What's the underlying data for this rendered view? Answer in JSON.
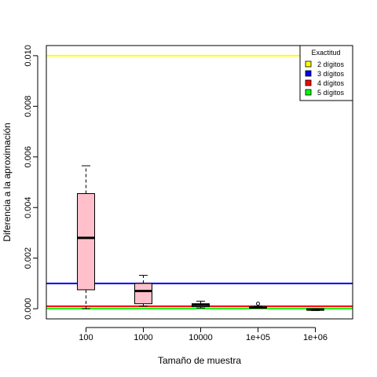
{
  "chart_data": {
    "type": "boxplot",
    "title": "",
    "xlabel": "Tamaño de muestra",
    "ylabel": "Diferencia a la aproximación",
    "ylim": [
      -0.0004,
      0.0104
    ],
    "categories": [
      "100",
      "1000",
      "10000",
      "1e+05",
      "1e+06"
    ],
    "yticks": [
      {
        "value": 0.0,
        "label": "0.000"
      },
      {
        "value": 0.002,
        "label": "0.002"
      },
      {
        "value": 0.004,
        "label": "0.004"
      },
      {
        "value": 0.006,
        "label": "0.006"
      },
      {
        "value": 0.008,
        "label": "0.008"
      },
      {
        "value": 0.01,
        "label": "0.010"
      }
    ],
    "box_color": "#ffc0cb",
    "boxes": [
      {
        "category": "100",
        "whisker_low": 0.0,
        "q1": 0.00075,
        "median": 0.0028,
        "q3": 0.00455,
        "whisker_high": 0.00565,
        "outliers": []
      },
      {
        "category": "1000",
        "whisker_low": 0.0001,
        "q1": 0.0002,
        "median": 0.0007,
        "q3": 0.001,
        "whisker_high": 0.00132,
        "outliers": []
      },
      {
        "category": "10000",
        "whisker_low": 3e-05,
        "q1": 8e-05,
        "median": 0.00015,
        "q3": 0.0002,
        "whisker_high": 0.0003,
        "outliers": []
      },
      {
        "category": "1e+05",
        "whisker_low": 2e-05,
        "q1": 3e-05,
        "median": 5e-05,
        "q3": 8e-05,
        "whisker_high": 0.0001,
        "outliers": [
          0.0002
        ]
      },
      {
        "category": "1e+06",
        "whisker_low": -7e-05,
        "q1": -5e-05,
        "median": -3e-05,
        "q3": -1e-05,
        "whisker_high": 0.0,
        "outliers": []
      }
    ],
    "reference_lines": [
      {
        "name": "2 dígitos",
        "value": 0.01,
        "color": "#ffff00"
      },
      {
        "name": "3 dígitos",
        "value": 0.001,
        "color": "#0000ff"
      },
      {
        "name": "4 dígitos",
        "value": 0.0001,
        "color": "#ff0000"
      },
      {
        "name": "5 dígitos",
        "value": 1e-05,
        "color": "#00ff00"
      }
    ],
    "legend": {
      "title": "Exactitud",
      "position": "top-right",
      "entries": [
        "2 dígitos",
        "3 dígitos",
        "4 dígitos",
        "5 dígitos"
      ]
    },
    "grid": false
  }
}
